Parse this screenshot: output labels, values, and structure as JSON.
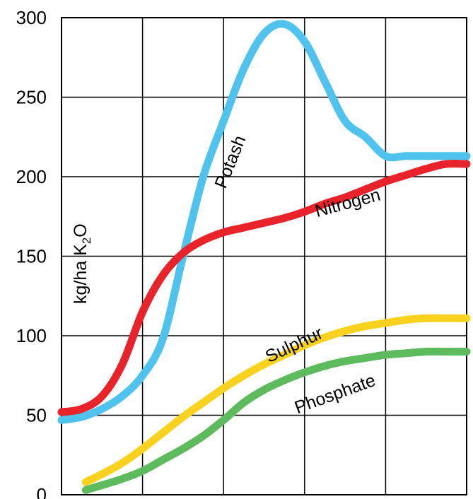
{
  "chart_data": {
    "type": "line",
    "title": "",
    "xlabel": "",
    "ylabel": "kg/ha K2O",
    "ylabel_main": "kg/ha K",
    "ylabel_sub": "2",
    "ylabel_tail": "O",
    "ylim": [
      0,
      300
    ],
    "xlim": [
      0,
      100
    ],
    "yticks": [
      "0",
      "50",
      "100",
      "150",
      "200",
      "250",
      "300"
    ],
    "x_grid_count": 5,
    "grid": true,
    "series": [
      {
        "name": "Potash",
        "color": "#4FC3EE",
        "x": [
          0,
          5,
          10,
          15,
          20,
          25,
          30,
          35,
          40,
          45,
          50,
          55,
          60,
          65,
          70,
          75,
          80,
          85,
          90,
          95,
          100
        ],
        "y": [
          47,
          49,
          54,
          62,
          75,
          98,
          150,
          200,
          235,
          268,
          290,
          296,
          285,
          260,
          235,
          225,
          213,
          213,
          213,
          213,
          213
        ]
      },
      {
        "name": "Nitrogen",
        "color": "#E8232A",
        "x": [
          0,
          5,
          10,
          15,
          20,
          25,
          30,
          35,
          40,
          45,
          50,
          55,
          60,
          65,
          70,
          75,
          80,
          85,
          90,
          95,
          100
        ],
        "y": [
          52,
          54,
          62,
          82,
          115,
          138,
          152,
          160,
          165,
          168,
          171,
          174,
          178,
          183,
          187,
          192,
          197,
          201,
          205,
          208,
          208
        ]
      },
      {
        "name": "Sulphur",
        "color": "#F9D21F",
        "x": [
          6,
          10,
          15,
          20,
          25,
          30,
          35,
          40,
          45,
          50,
          55,
          60,
          65,
          70,
          75,
          80,
          85,
          90,
          95,
          100
        ],
        "y": [
          8,
          13,
          20,
          29,
          39,
          49,
          58,
          67,
          75,
          82,
          88,
          94,
          99,
          103,
          106,
          108,
          110,
          111,
          111,
          111
        ]
      },
      {
        "name": "Phosphate",
        "color": "#5DBA5D",
        "x": [
          6,
          10,
          15,
          20,
          25,
          30,
          35,
          40,
          45,
          50,
          55,
          60,
          65,
          70,
          75,
          80,
          85,
          90,
          95,
          100
        ],
        "y": [
          3,
          6,
          10,
          15,
          22,
          29,
          37,
          47,
          58,
          66,
          72,
          77,
          81,
          84,
          86,
          88,
          89,
          90,
          90,
          90
        ]
      }
    ],
    "annotations": [
      {
        "text": "Potash",
        "x": 43,
        "y": 208,
        "rotate": -68,
        "series": 0
      },
      {
        "text": "Nitrogen",
        "x": 71,
        "y": 180,
        "rotate": -15,
        "series": 1
      },
      {
        "text": "Sulphur",
        "x": 58,
        "y": 91,
        "rotate": -25,
        "series": 2
      },
      {
        "text": "Phosphate",
        "x": 68,
        "y": 60,
        "rotate": -20,
        "series": 3
      }
    ]
  }
}
